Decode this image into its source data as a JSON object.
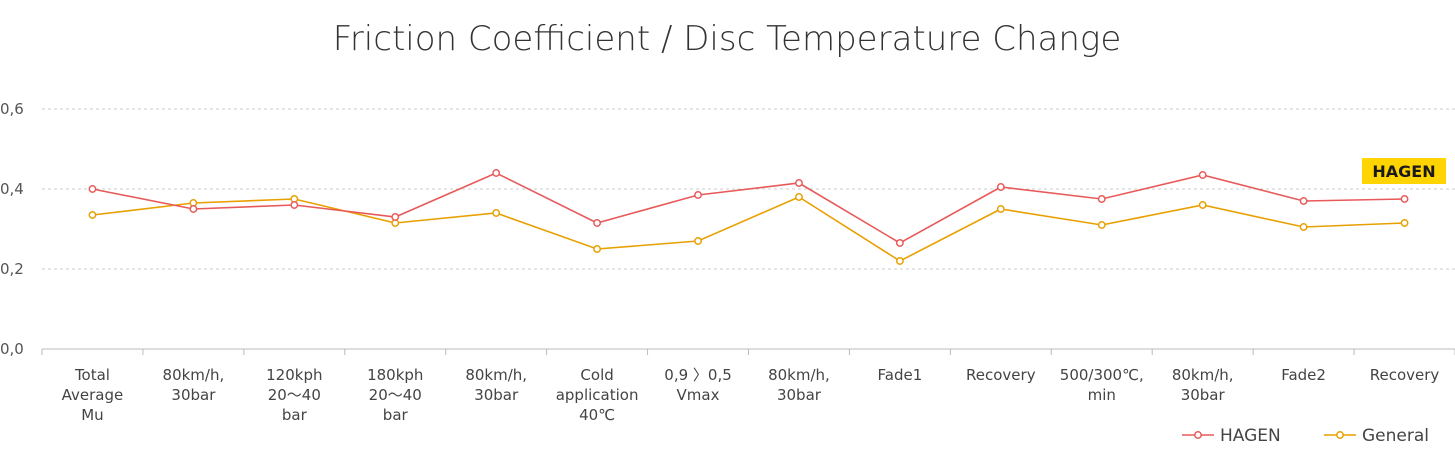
{
  "chart_data": {
    "type": "line",
    "title": "Friction Coefficient / Disc Temperature Change",
    "xlabel": "",
    "ylabel": "",
    "ylim": [
      0,
      0.6
    ],
    "yticks": [
      "0,0",
      "0,2",
      "0,4",
      "0,6"
    ],
    "grid": true,
    "legend_position": "bottom-right",
    "categories": [
      [
        "Total",
        "Average",
        "Mu"
      ],
      [
        "80km/h,",
        "30bar"
      ],
      [
        "120kph",
        "20～40",
        "bar"
      ],
      [
        "180kph",
        "20～40",
        "bar"
      ],
      [
        "80km/h,",
        "30bar"
      ],
      [
        "Cold",
        "application",
        "40℃"
      ],
      [
        "0,9 〉0,5",
        "Vmax"
      ],
      [
        "80km/h,",
        "30bar"
      ],
      [
        "Fade1"
      ],
      [
        "Recovery"
      ],
      [
        "500/300℃,",
        "min"
      ],
      [
        "80km/h,",
        "30bar"
      ],
      [
        "Fade2"
      ],
      [
        "Recovery"
      ]
    ],
    "series": [
      {
        "name": "HAGEN",
        "color": "#e85a5a",
        "values": [
          0.4,
          0.35,
          0.36,
          0.33,
          0.44,
          0.315,
          0.385,
          0.415,
          0.265,
          0.405,
          0.375,
          0.435,
          0.37,
          0.375
        ]
      },
      {
        "name": "General",
        "color": "#e8a000",
        "values": [
          0.335,
          0.365,
          0.375,
          0.315,
          0.34,
          0.25,
          0.27,
          0.38,
          0.22,
          0.35,
          0.31,
          0.36,
          0.305,
          0.315
        ]
      }
    ],
    "badge": {
      "text": "HAGEN",
      "color": "#ffd400"
    }
  }
}
